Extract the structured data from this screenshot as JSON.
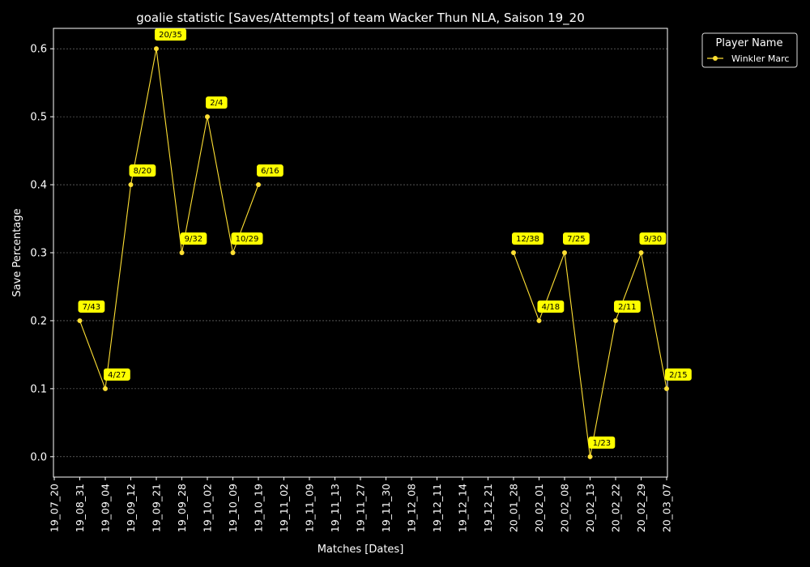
{
  "chart_data": {
    "type": "line",
    "title": "goalie statistic [Saves/Attempts] of team Wacker Thun NLA, Saison 19_20",
    "xlabel": "Matches [Dates]",
    "ylabel": "Save Percentage",
    "categories": [
      "19_07_20",
      "19_08_31",
      "19_09_04",
      "19_09_12",
      "19_09_21",
      "19_09_28",
      "19_10_02",
      "19_10_09",
      "19_10_19",
      "19_11_02",
      "19_11_09",
      "19_11_13",
      "19_11_27",
      "19_11_30",
      "19_12_08",
      "19_12_11",
      "19_12_14",
      "19_12_21",
      "20_01_28",
      "20_02_01",
      "20_02_08",
      "20_02_13",
      "20_02_22",
      "20_02_29",
      "20_03_07"
    ],
    "yticks": [
      "0.0",
      "0.1",
      "0.2",
      "0.3",
      "0.4",
      "0.5",
      "0.6"
    ],
    "ylim": [
      -0.03,
      0.63
    ],
    "grid": "horizontal dashed",
    "legend": {
      "title": "Player Name",
      "position": "outside-top-right"
    },
    "series": [
      {
        "name": "Winkler Marc",
        "color": "#FFE033",
        "segments": [
          [
            {
              "x": "19_08_31",
              "y": 0.2,
              "label": "7/43"
            },
            {
              "x": "19_09_04",
              "y": 0.1,
              "label": "4/27"
            },
            {
              "x": "19_09_12",
              "y": 0.4,
              "label": "8/20"
            },
            {
              "x": "19_09_21",
              "y": 0.6,
              "label": "20/35"
            },
            {
              "x": "19_09_28",
              "y": 0.3,
              "label": "9/32"
            },
            {
              "x": "19_10_02",
              "y": 0.5,
              "label": "2/4"
            },
            {
              "x": "19_10_09",
              "y": 0.3,
              "label": "10/29"
            },
            {
              "x": "19_10_19",
              "y": 0.4,
              "label": "6/16"
            }
          ],
          [
            {
              "x": "20_01_28",
              "y": 0.3,
              "label": "12/38"
            },
            {
              "x": "20_02_01",
              "y": 0.2,
              "label": "4/18"
            },
            {
              "x": "20_02_08",
              "y": 0.3,
              "label": "7/25"
            },
            {
              "x": "20_02_13",
              "y": 0.0,
              "label": "1/23"
            },
            {
              "x": "20_02_22",
              "y": 0.2,
              "label": "2/11"
            },
            {
              "x": "20_02_29",
              "y": 0.3,
              "label": "9/30"
            },
            {
              "x": "20_03_07",
              "y": 0.1,
              "label": "2/15"
            }
          ]
        ]
      }
    ]
  },
  "colors": {
    "background": "#000000",
    "foreground": "#FFFFFF",
    "series": "#FFE033",
    "label_box": "#FFFF00",
    "grid": "#888888"
  }
}
